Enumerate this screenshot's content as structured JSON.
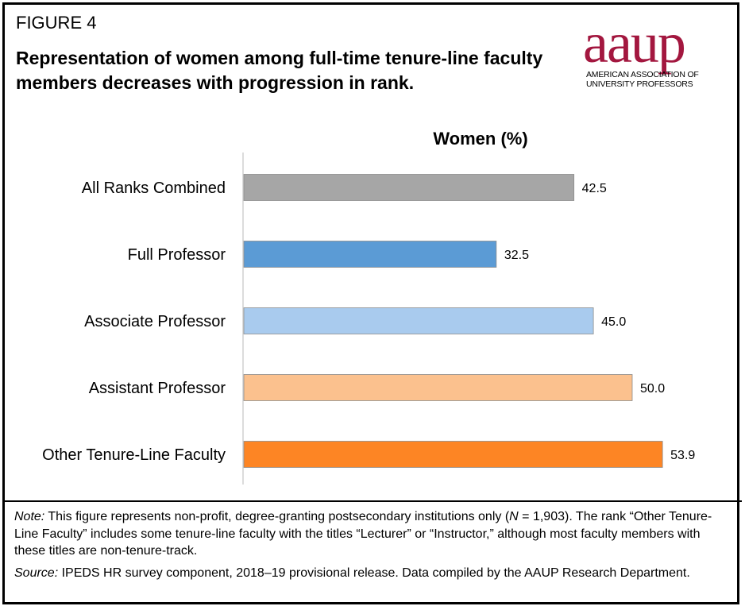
{
  "figure_label": "FIGURE 4",
  "title": "Representation of women among full-time tenure-line faculty members decreases with progression in rank.",
  "logo": {
    "word": "aaup",
    "line1": "AMERICAN ASSOCIATION OF",
    "line2": "UNIVERSITY PROFESSORS",
    "color": "#a3173f"
  },
  "chart_data": {
    "type": "bar",
    "orientation": "horizontal",
    "title": "Women (%)",
    "categories": [
      "All Ranks Combined",
      "Full Professor",
      "Associate Professor",
      "Assistant Professor",
      "Other Tenure-Line Faculty"
    ],
    "values": [
      42.5,
      32.5,
      45.0,
      50.0,
      53.9
    ],
    "value_labels": [
      "42.5",
      "32.5",
      "45.0",
      "50.0",
      "53.9"
    ],
    "colors": [
      "#a6a6a6",
      "#5b9bd5",
      "#a9cbee",
      "#fbc18e",
      "#fd8524"
    ],
    "xlim": [
      0,
      55
    ],
    "grid": false,
    "legend": "none"
  },
  "notes": {
    "note_label": "Note:",
    "note_text_1": " This figure represents non-profit, degree-granting postsecondary institutions only (",
    "note_n": "N",
    "note_text_2": " = 1,903). The rank “Other Tenure-Line Faculty” includes some tenure-line faculty with the titles “Lecturer” or “Instructor,” although most faculty members with these titles are non-tenure-track.",
    "source_label": "Source:",
    "source_text": " IPEDS HR survey component, 2018–19 provisional release. Data compiled by the AAUP Research Department."
  }
}
